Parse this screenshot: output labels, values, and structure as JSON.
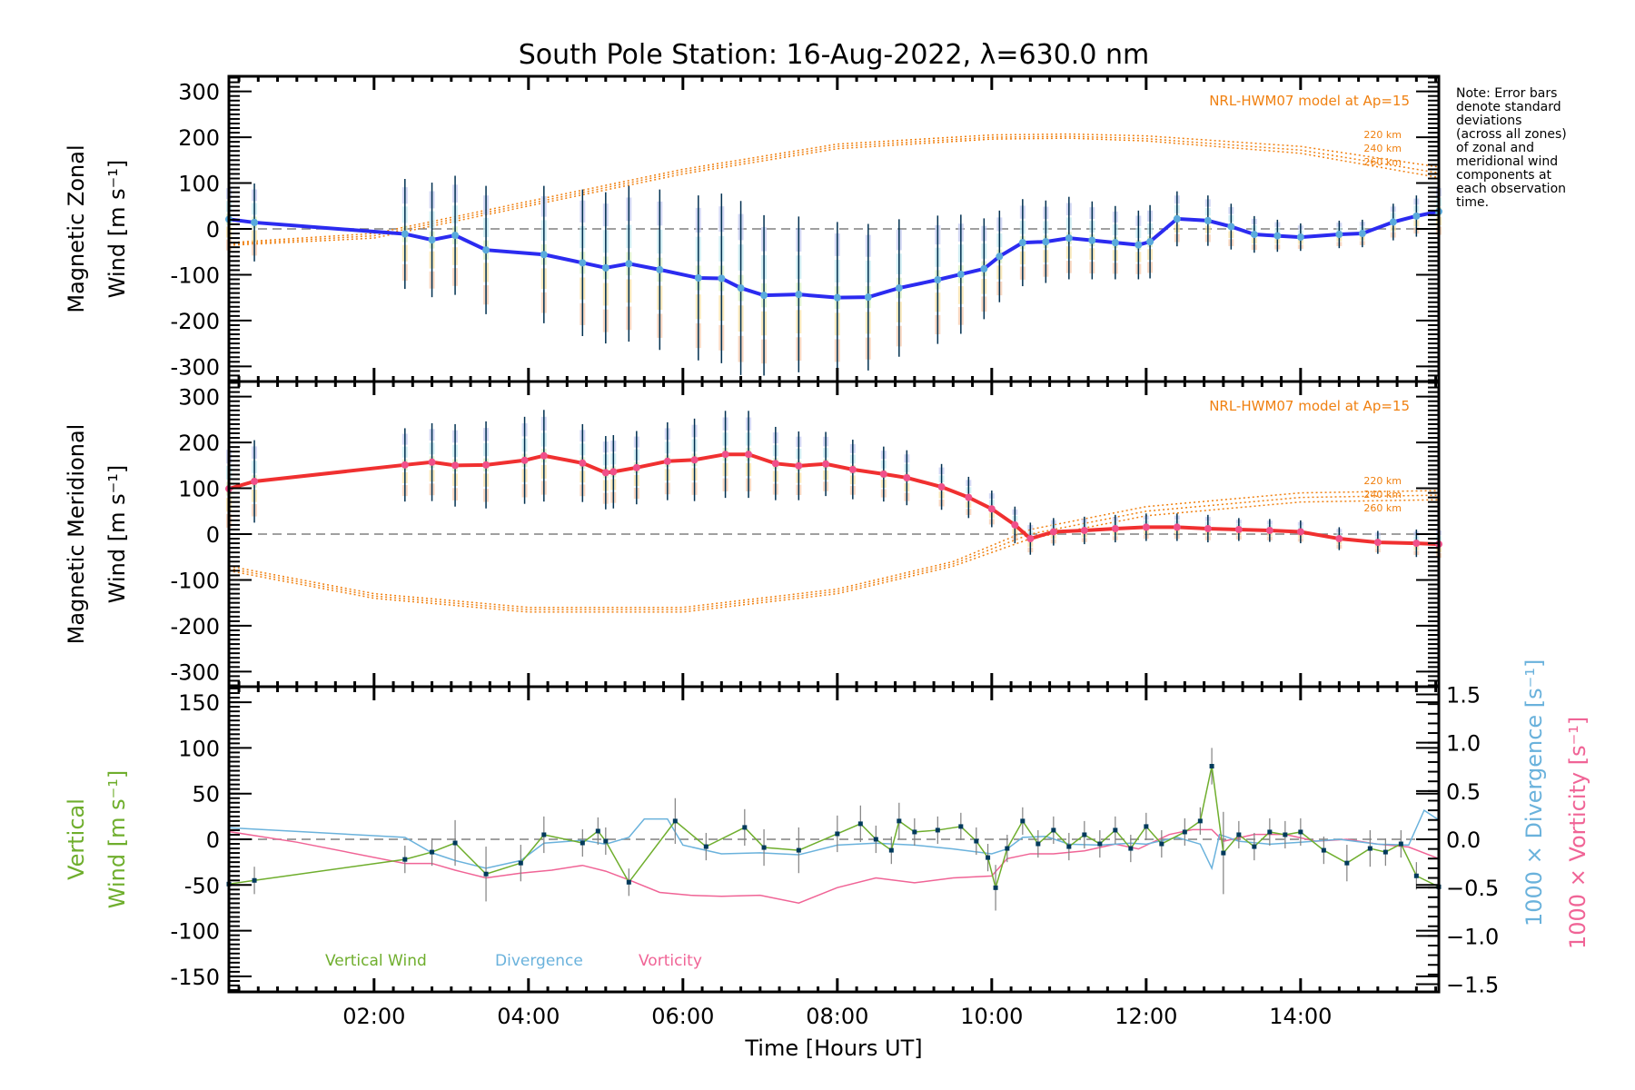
{
  "chart_data": {
    "type": "line",
    "title": "South Pole Station: 16-Aug-2022, λ=630.0 nm",
    "xlabel": "Time [Hours UT]",
    "xlim": [
      0.12,
      15.79
    ],
    "xticks": [
      {
        "v": 2,
        "label": "02:00"
      },
      {
        "v": 4,
        "label": "04:00"
      },
      {
        "v": 6,
        "label": "06:00"
      },
      {
        "v": 8,
        "label": "08:00"
      },
      {
        "v": 10,
        "label": "10:00"
      },
      {
        "v": 12,
        "label": "12:00"
      },
      {
        "v": 14,
        "label": "14:00"
      }
    ],
    "note": [
      "Note: Error bars",
      "denote standard",
      "deviations",
      "(across all zones)",
      "of zonal and",
      "meridional wind",
      "components at",
      "each observation",
      "time."
    ],
    "colors": {
      "zonal": "#2b2bf0",
      "zonal_marker": "#5aaadc",
      "meridional": "#f03030",
      "meridional_marker": "#f0508a",
      "model": "#f08010",
      "errorbar": "#003050",
      "vertical": "#6fae2d",
      "divergence": "#6ab2dc",
      "vorticity": "#f06496",
      "vertical_err": "#808080",
      "vertical_marker": "#003a5c",
      "zero": "#808080"
    },
    "panels": [
      {
        "id": "zonal",
        "ylabel_line1": "Magnetic Zonal",
        "ylabel_line2": "Wind [m s⁻¹]",
        "ylim": [
          -333,
          333
        ],
        "yticks": [
          300,
          200,
          100,
          0,
          -100,
          -200,
          -300
        ],
        "model_label": "NRL-HWM07 model at Ap=15",
        "model_alt_labels": [
          "220 km",
          "240 km",
          "260 km"
        ],
        "series": {
          "name": "Magnetic Zonal Wind",
          "x": [
            0.12,
            0.45,
            2.4,
            2.75,
            3.05,
            3.45,
            4.2,
            4.7,
            5.0,
            5.3,
            5.7,
            6.2,
            6.5,
            6.75,
            7.05,
            7.5,
            8.0,
            8.4,
            8.8,
            9.3,
            9.6,
            9.9,
            10.1,
            10.4,
            10.7,
            11.0,
            11.3,
            11.6,
            11.9,
            12.05,
            12.4,
            12.8,
            13.1,
            13.4,
            13.7,
            14.0,
            14.5,
            14.8,
            15.2,
            15.5,
            15.79
          ],
          "y": [
            21,
            14,
            -11,
            -24,
            -14,
            -46,
            -56,
            -74,
            -85,
            -76,
            -89,
            -107,
            -108,
            -129,
            -145,
            -143,
            -150,
            -149,
            -129,
            -111,
            -99,
            -87,
            -60,
            -30,
            -28,
            -20,
            -25,
            -30,
            -35,
            -28,
            22,
            18,
            5,
            -12,
            -15,
            -18,
            -12,
            -10,
            15,
            28,
            38
          ],
          "err": [
            80,
            85,
            120,
            125,
            130,
            140,
            150,
            160,
            165,
            170,
            175,
            180,
            185,
            190,
            175,
            170,
            165,
            160,
            150,
            140,
            130,
            110,
            100,
            95,
            90,
            90,
            85,
            80,
            75,
            80,
            60,
            55,
            50,
            40,
            35,
            30,
            30,
            30,
            40,
            45,
            60
          ]
        },
        "models": [
          {
            "alt": "220 km",
            "x": [
              0.12,
              2,
              4,
              6,
              8,
              10,
              11,
              12,
              14,
              15.79
            ],
            "y": [
              -30,
              -10,
              60,
              130,
              185,
              205,
              207,
              203,
              180,
              135
            ]
          },
          {
            "alt": "240 km",
            "x": [
              0.12,
              2,
              4,
              6,
              8,
              10,
              11,
              12,
              14,
              15.79
            ],
            "y": [
              -33,
              -15,
              55,
              125,
              180,
              200,
              202,
              197,
              172,
              122
            ]
          },
          {
            "alt": "260 km",
            "x": [
              0.12,
              2,
              4,
              6,
              8,
              10,
              11,
              12,
              14,
              15.79
            ],
            "y": [
              -36,
              -20,
              50,
              120,
              175,
              196,
              198,
              192,
              165,
              112
            ]
          }
        ]
      },
      {
        "id": "meridional",
        "ylabel_line1": "Magnetic Meridional",
        "ylabel_line2": "Wind [m s⁻¹]",
        "ylim": [
          -333,
          333
        ],
        "yticks": [
          300,
          200,
          100,
          0,
          -100,
          -200,
          -300
        ],
        "model_label": "NRL-HWM07 model at Ap=15",
        "model_alt_labels": [
          "220 km",
          "240 km",
          "260 km"
        ],
        "series": {
          "name": "Magnetic Meridional Wind",
          "x": [
            0.12,
            0.45,
            2.4,
            2.75,
            3.05,
            3.45,
            3.95,
            4.2,
            4.7,
            5.0,
            5.1,
            5.4,
            5.8,
            6.15,
            6.55,
            6.85,
            7.2,
            7.5,
            7.85,
            8.2,
            8.6,
            8.9,
            9.35,
            9.7,
            10.0,
            10.3,
            10.5,
            10.8,
            11.2,
            11.6,
            12.0,
            12.4,
            12.8,
            13.2,
            13.6,
            14.0,
            14.5,
            15.0,
            15.5,
            15.79
          ],
          "y": [
            99,
            115,
            151,
            157,
            150,
            151,
            161,
            171,
            155,
            134,
            136,
            145,
            159,
            162,
            174,
            174,
            154,
            149,
            153,
            141,
            131,
            123,
            103,
            80,
            55,
            20,
            -10,
            5,
            8,
            12,
            15,
            15,
            12,
            10,
            8,
            5,
            -10,
            -18,
            -20,
            -22
          ],
          "err": [
            100,
            90,
            80,
            85,
            90,
            95,
            95,
            100,
            85,
            80,
            80,
            80,
            85,
            90,
            95,
            95,
            80,
            75,
            70,
            65,
            60,
            60,
            50,
            45,
            40,
            40,
            35,
            30,
            30,
            30,
            30,
            30,
            30,
            25,
            25,
            25,
            25,
            25,
            30,
            35
          ]
        },
        "models": [
          {
            "alt": "220 km",
            "x": [
              0.12,
              2,
              4,
              6,
              8,
              9.5,
              10.5,
              12,
              14,
              15.79
            ],
            "y": [
              -70,
              -130,
              -160,
              -160,
              -120,
              -60,
              10,
              60,
              90,
              95
            ]
          },
          {
            "alt": "240 km",
            "x": [
              0.12,
              2,
              4,
              6,
              8,
              9.5,
              10.5,
              12,
              14,
              15.79
            ],
            "y": [
              -75,
              -135,
              -165,
              -165,
              -125,
              -65,
              0,
              50,
              80,
              85
            ]
          },
          {
            "alt": "260 km",
            "x": [
              0.12,
              2,
              4,
              6,
              8,
              9.5,
              10.5,
              12,
              14,
              15.79
            ],
            "y": [
              -80,
              -140,
              -170,
              -170,
              -130,
              -70,
              -10,
              40,
              70,
              75
            ]
          }
        ]
      },
      {
        "id": "vertical",
        "ylabel_line1": "Vertical",
        "ylabel_line2": "Wind [m s⁻¹]",
        "ylim": [
          -167,
          167
        ],
        "yticks": [
          150,
          100,
          50,
          0,
          -50,
          -100,
          -150
        ],
        "right_ylim": [
          -1.58,
          1.58
        ],
        "right_yticks": [
          {
            "v": 1.5,
            "label": "1.5"
          },
          {
            "v": 1.0,
            "label": "1.0"
          },
          {
            "v": 0.5,
            "label": "0.5"
          },
          {
            "v": 0.0,
            "label": "0.0"
          },
          {
            "v": -0.5,
            "label": "−0.5"
          },
          {
            "v": -1.0,
            "label": "−1.0"
          },
          {
            "v": -1.5,
            "label": "−1.5"
          }
        ],
        "right_label_div": "1000 × Divergence [s⁻¹]",
        "right_label_vort": "1000 × Vorticity [s⁻¹]",
        "legend": [
          "Vertical Wind",
          "Divergence",
          "Vorticity"
        ],
        "vertical_wind": {
          "x": [
            0.12,
            0.45,
            2.4,
            2.75,
            3.05,
            3.45,
            3.9,
            4.2,
            4.7,
            4.9,
            5.0,
            5.3,
            5.9,
            6.3,
            6.8,
            7.05,
            7.5,
            8.0,
            8.3,
            8.5,
            8.7,
            8.8,
            9.0,
            9.3,
            9.6,
            9.8,
            9.95,
            10.05,
            10.2,
            10.4,
            10.6,
            10.8,
            11.0,
            11.2,
            11.4,
            11.6,
            11.8,
            12.0,
            12.2,
            12.5,
            12.7,
            12.85,
            13.0,
            13.2,
            13.4,
            13.6,
            13.8,
            14.0,
            14.3,
            14.6,
            14.9,
            15.1,
            15.3,
            15.5,
            15.79
          ],
          "y": [
            -49,
            -45,
            -22,
            -14,
            -4,
            -38,
            -26,
            5,
            -4,
            9,
            -2,
            -47,
            20,
            -8,
            13,
            -9,
            -12,
            6,
            17,
            0,
            -12,
            20,
            8,
            10,
            14,
            -2,
            -20,
            -53,
            -10,
            20,
            -5,
            10,
            -8,
            5,
            -5,
            10,
            -10,
            14,
            -5,
            8,
            20,
            80,
            -15,
            5,
            -8,
            8,
            5,
            8,
            -12,
            -26,
            -10,
            -14,
            -5,
            -40,
            -52
          ],
          "err": [
            15,
            15,
            15,
            15,
            25,
            30,
            20,
            20,
            15,
            15,
            15,
            15,
            25,
            15,
            20,
            20,
            25,
            20,
            20,
            15,
            15,
            20,
            15,
            15,
            15,
            15,
            15,
            25,
            15,
            15,
            15,
            15,
            15,
            15,
            15,
            15,
            15,
            15,
            15,
            15,
            15,
            20,
            45,
            15,
            15,
            15,
            15,
            15,
            15,
            20,
            20,
            15,
            15,
            15,
            15
          ]
        },
        "divergence": {
          "x": [
            0.12,
            2.4,
            2.75,
            3.05,
            3.45,
            3.9,
            4.2,
            4.7,
            5.0,
            5.3,
            5.5,
            5.8,
            6.0,
            6.5,
            7.0,
            7.5,
            8.0,
            8.5,
            9.0,
            9.5,
            10.0,
            10.2,
            10.4,
            10.7,
            11.0,
            11.4,
            11.8,
            12.0,
            12.4,
            12.7,
            12.85,
            12.95,
            13.2,
            13.6,
            14.0,
            14.5,
            15.0,
            15.4,
            15.6,
            15.79
          ],
          "y": [
            0.12,
            0.02,
            -0.14,
            -0.22,
            -0.3,
            -0.22,
            -0.04,
            -0.01,
            -0.05,
            0.02,
            0.21,
            0.21,
            -0.06,
            -0.15,
            -0.14,
            -0.16,
            -0.06,
            -0.04,
            -0.06,
            -0.1,
            -0.15,
            -0.1,
            0.02,
            0.03,
            -0.05,
            -0.06,
            -0.04,
            -0.05,
            0.02,
            -0.05,
            -0.3,
            0.05,
            -0.02,
            -0.05,
            -0.03,
            0.0,
            -0.05,
            -0.06,
            0.3,
            0.2
          ]
        },
        "vorticity": {
          "x": [
            0.12,
            1.0,
            2.4,
            2.75,
            3.05,
            3.45,
            3.9,
            4.3,
            4.7,
            5.0,
            5.3,
            5.7,
            6.1,
            6.5,
            7.0,
            7.5,
            8.0,
            8.5,
            9.0,
            9.5,
            10.0,
            10.2,
            10.5,
            10.8,
            11.2,
            11.6,
            11.9,
            12.3,
            12.6,
            12.85,
            13.0,
            13.4,
            13.8,
            14.2,
            14.6,
            15.0,
            15.4,
            15.79
          ],
          "y": [
            0.08,
            -0.03,
            -0.25,
            -0.25,
            -0.32,
            -0.4,
            -0.35,
            -0.32,
            -0.27,
            -0.33,
            -0.42,
            -0.55,
            -0.58,
            -0.59,
            -0.58,
            -0.66,
            -0.5,
            -0.4,
            -0.45,
            -0.4,
            -0.38,
            -0.2,
            -0.15,
            -0.15,
            -0.12,
            -0.05,
            -0.1,
            0.05,
            0.1,
            0.1,
            -0.02,
            0.05,
            0.05,
            -0.02,
            0.0,
            -0.05,
            -0.08,
            -0.2
          ]
        }
      }
    ]
  }
}
